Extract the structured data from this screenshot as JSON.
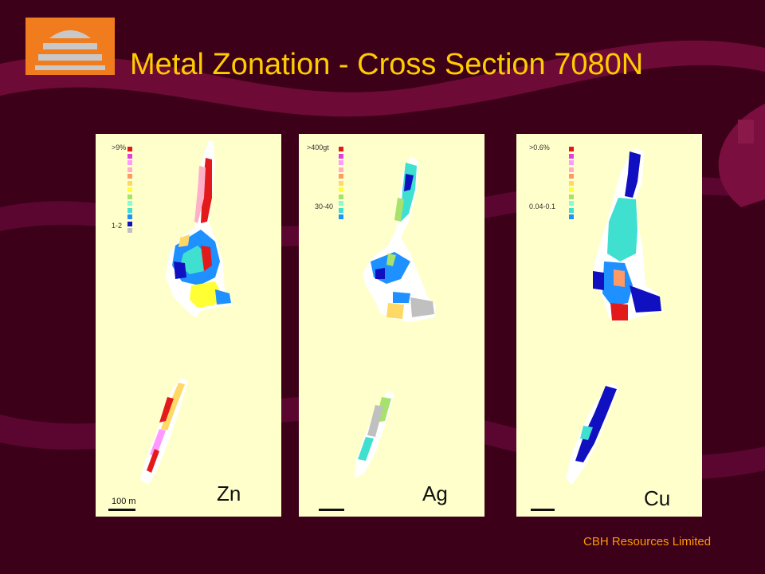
{
  "title": "Metal Zonation - Cross Section 7080N",
  "footer": "CBH Resources Limited",
  "logo": {
    "icon": "cbh-dome-logo-icon",
    "background": "#f07c1e",
    "stripe_color": "#c8c8c8"
  },
  "colors": {
    "background": "#3d0019",
    "swoosh": "#6e0a36",
    "title": "#ffcc00",
    "footer": "#ff9900",
    "panel": "#ffffcc"
  },
  "legend_palette": [
    "#e31a1c",
    "#e040e0",
    "#ff99ff",
    "#ffb0c8",
    "#ff9966",
    "#ffd966",
    "#ffff33",
    "#a6e26c",
    "#7fffd4",
    "#40e0d0",
    "#1e90ff",
    "#1010c0",
    "#c0c0c0"
  ],
  "panels": [
    {
      "element": "Zn",
      "legend_top": ">9%",
      "legend_bottom": "1-2",
      "scale_label": "100  m"
    },
    {
      "element": "Ag",
      "legend_top": ">400gt",
      "legend_bottom": "30-40",
      "scale_label": ""
    },
    {
      "element": "Cu",
      "legend_top": ">0.6%",
      "legend_bottom": "0.04-0.1",
      "scale_label": ""
    }
  ]
}
